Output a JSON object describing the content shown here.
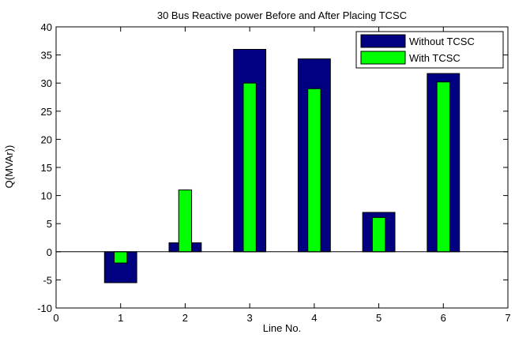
{
  "chart_data": {
    "type": "bar",
    "title": "30 Bus Reactive power Before and After Placing TCSC",
    "xlabel": "Line No.",
    "ylabel": "Q(MVAr))",
    "xlim": [
      0,
      7
    ],
    "ylim": [
      -10,
      40
    ],
    "xticks": [
      "0",
      "1",
      "2",
      "3",
      "4",
      "5",
      "6",
      "7"
    ],
    "yticks": [
      "-10",
      "-5",
      "0",
      "5",
      "10",
      "15",
      "20",
      "25",
      "30",
      "35",
      "40"
    ],
    "categories": [
      1,
      2,
      3,
      4,
      5,
      6
    ],
    "series": [
      {
        "name": "Without TCSC",
        "color": "#000080",
        "values": [
          -5.5,
          1.6,
          36.0,
          34.3,
          7.0,
          31.7
        ]
      },
      {
        "name": "With TCSC",
        "color": "#00ff00",
        "values": [
          -2.0,
          11.0,
          30.0,
          29.0,
          6.1,
          30.2
        ]
      }
    ],
    "legend_position": "top-right",
    "grid": false
  }
}
